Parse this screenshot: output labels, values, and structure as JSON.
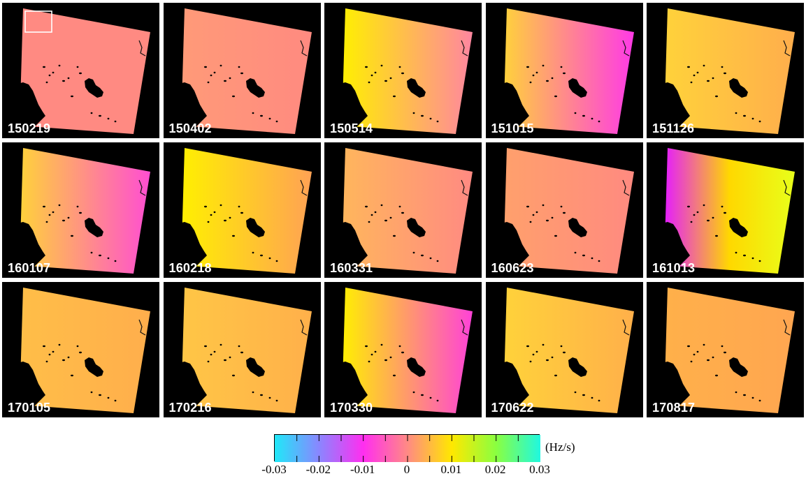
{
  "figure": {
    "panels": [
      {
        "label": "150219",
        "colors": [
          "#ff8a82",
          "#ff8a82"
        ],
        "highlight_box": true
      },
      {
        "label": "150402",
        "colors": [
          "#ff9a78",
          "#ff8a80"
        ]
      },
      {
        "label": "150514",
        "colors": [
          "#fff000",
          "#ff86a0"
        ]
      },
      {
        "label": "151015",
        "colors": [
          "#ffd23a",
          "#ff3ae6"
        ]
      },
      {
        "label": "151126",
        "colors": [
          "#ffd23a",
          "#ffae4c"
        ]
      },
      {
        "label": "160107",
        "colors": [
          "#ffd23a",
          "#ff4ed2"
        ]
      },
      {
        "label": "160218",
        "colors": [
          "#fff000",
          "#ffa254"
        ]
      },
      {
        "label": "160331",
        "colors": [
          "#ffb65c",
          "#ff8a82"
        ]
      },
      {
        "label": "160623",
        "colors": [
          "#ffa06c",
          "#ff8a80"
        ]
      },
      {
        "label": "161013",
        "colors": [
          "#e41cff",
          "#ffd800",
          "#e8ff1a"
        ]
      },
      {
        "label": "170105",
        "colors": [
          "#ffbe48",
          "#ffae4c"
        ]
      },
      {
        "label": "170216",
        "colors": [
          "#ffc646",
          "#ffb04a"
        ]
      },
      {
        "label": "170330",
        "colors": [
          "#fff000",
          "#ff42d8"
        ]
      },
      {
        "label": "170622",
        "colors": [
          "#ffd23a",
          "#ffb04a"
        ]
      },
      {
        "label": "170817",
        "colors": [
          "#ffb04a",
          "#ffa650"
        ]
      }
    ]
  },
  "colorbar": {
    "unit": "(Hz/s)",
    "stops": [
      "#20e8f8",
      "#8a86ff",
      "#ff2ef0",
      "#ff8a84",
      "#ffe800",
      "#8aff40",
      "#20f8e0"
    ],
    "tick_labels": [
      "-0.03",
      "-0.02",
      "-0.01",
      "0",
      "0.01",
      "0.02",
      "0.03"
    ]
  }
}
